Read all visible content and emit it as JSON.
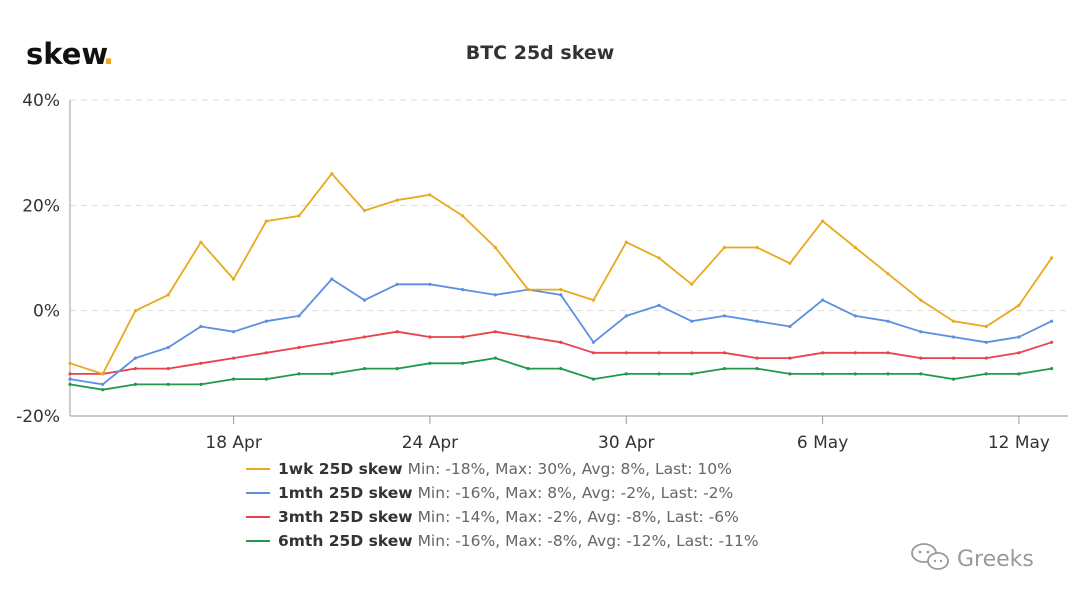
{
  "brand": {
    "logo_text": "skew",
    "logo_dot": "."
  },
  "watermark": {
    "text": "Greeks",
    "icon": "chat-bubbles-icon"
  },
  "colors": {
    "grid": "#dddddd",
    "axis": "#999999",
    "logo_dot": "#e8a91c"
  },
  "chart_data": {
    "type": "line",
    "title": "BTC 25d skew",
    "ylim": [
      -20,
      40
    ],
    "y_ticks": [
      {
        "value": 40,
        "label": "40%"
      },
      {
        "value": 20,
        "label": "20%"
      },
      {
        "value": 0,
        "label": "0%"
      },
      {
        "value": -20,
        "label": "-20%"
      }
    ],
    "x_range": [
      "2020-04-13",
      "2020-05-13"
    ],
    "x_ticks": [
      {
        "date": "2020-04-18",
        "label": "18 Apr"
      },
      {
        "date": "2020-04-24",
        "label": "24 Apr"
      },
      {
        "date": "2020-04-30",
        "label": "30 Apr"
      },
      {
        "date": "2020-05-06",
        "label": "6 May"
      },
      {
        "date": "2020-05-12",
        "label": "12 May"
      }
    ],
    "grid": true,
    "legend_position": "bottom",
    "series": [
      {
        "name": "1wk 25D skew",
        "stats": "Min: -18%, Max: 30%, Avg: 8%, Last: 10%",
        "color": "#e8a91c",
        "points": [
          [
            "2020-04-13",
            -10
          ],
          [
            "2020-04-14",
            -12
          ],
          [
            "2020-04-15",
            0
          ],
          [
            "2020-04-16",
            3
          ],
          [
            "2020-04-17",
            13
          ],
          [
            "2020-04-18",
            6
          ],
          [
            "2020-04-19",
            17
          ],
          [
            "2020-04-20",
            18
          ],
          [
            "2020-04-21",
            26
          ],
          [
            "2020-04-22",
            19
          ],
          [
            "2020-04-23",
            21
          ],
          [
            "2020-04-24",
            22
          ],
          [
            "2020-04-25",
            18
          ],
          [
            "2020-04-26",
            12
          ],
          [
            "2020-04-27",
            4
          ],
          [
            "2020-04-28",
            4
          ],
          [
            "2020-04-29",
            2
          ],
          [
            "2020-04-30",
            13
          ],
          [
            "2020-05-01",
            10
          ],
          [
            "2020-05-02",
            5
          ],
          [
            "2020-05-03",
            12
          ],
          [
            "2020-05-04",
            12
          ],
          [
            "2020-05-05",
            9
          ],
          [
            "2020-05-06",
            17
          ],
          [
            "2020-05-07",
            12
          ],
          [
            "2020-05-08",
            7
          ],
          [
            "2020-05-09",
            2
          ],
          [
            "2020-05-10",
            -2
          ],
          [
            "2020-05-11",
            -3
          ],
          [
            "2020-05-12",
            1
          ],
          [
            "2020-05-13",
            10
          ]
        ]
      },
      {
        "name": "1mth 25D skew",
        "stats": "Min: -16%, Max: 8%, Avg: -2%, Last: -2%",
        "color": "#5b8fe3",
        "points": [
          [
            "2020-04-13",
            -13
          ],
          [
            "2020-04-14",
            -14
          ],
          [
            "2020-04-15",
            -9
          ],
          [
            "2020-04-16",
            -7
          ],
          [
            "2020-04-17",
            -3
          ],
          [
            "2020-04-18",
            -4
          ],
          [
            "2020-04-19",
            -2
          ],
          [
            "2020-04-20",
            -1
          ],
          [
            "2020-04-21",
            6
          ],
          [
            "2020-04-22",
            2
          ],
          [
            "2020-04-23",
            5
          ],
          [
            "2020-04-24",
            5
          ],
          [
            "2020-04-25",
            4
          ],
          [
            "2020-04-26",
            3
          ],
          [
            "2020-04-27",
            4
          ],
          [
            "2020-04-28",
            3
          ],
          [
            "2020-04-29",
            -6
          ],
          [
            "2020-04-30",
            -1
          ],
          [
            "2020-05-01",
            1
          ],
          [
            "2020-05-02",
            -2
          ],
          [
            "2020-05-03",
            -1
          ],
          [
            "2020-05-04",
            -2
          ],
          [
            "2020-05-05",
            -3
          ],
          [
            "2020-05-06",
            2
          ],
          [
            "2020-05-07",
            -1
          ],
          [
            "2020-05-08",
            -2
          ],
          [
            "2020-05-09",
            -4
          ],
          [
            "2020-05-10",
            -5
          ],
          [
            "2020-05-11",
            -6
          ],
          [
            "2020-05-12",
            -5
          ],
          [
            "2020-05-13",
            -2
          ]
        ]
      },
      {
        "name": "3mth 25D skew",
        "stats": "Min: -14%, Max: -2%, Avg: -8%, Last: -6%",
        "color": "#e8414a",
        "points": [
          [
            "2020-04-13",
            -12
          ],
          [
            "2020-04-14",
            -12
          ],
          [
            "2020-04-15",
            -11
          ],
          [
            "2020-04-16",
            -11
          ],
          [
            "2020-04-17",
            -10
          ],
          [
            "2020-04-18",
            -9
          ],
          [
            "2020-04-19",
            -8
          ],
          [
            "2020-04-20",
            -7
          ],
          [
            "2020-04-21",
            -6
          ],
          [
            "2020-04-22",
            -5
          ],
          [
            "2020-04-23",
            -4
          ],
          [
            "2020-04-24",
            -5
          ],
          [
            "2020-04-25",
            -5
          ],
          [
            "2020-04-26",
            -4
          ],
          [
            "2020-04-27",
            -5
          ],
          [
            "2020-04-28",
            -6
          ],
          [
            "2020-04-29",
            -8
          ],
          [
            "2020-04-30",
            -8
          ],
          [
            "2020-05-01",
            -8
          ],
          [
            "2020-05-02",
            -8
          ],
          [
            "2020-05-03",
            -8
          ],
          [
            "2020-05-04",
            -9
          ],
          [
            "2020-05-05",
            -9
          ],
          [
            "2020-05-06",
            -8
          ],
          [
            "2020-05-07",
            -8
          ],
          [
            "2020-05-08",
            -8
          ],
          [
            "2020-05-09",
            -9
          ],
          [
            "2020-05-10",
            -9
          ],
          [
            "2020-05-11",
            -9
          ],
          [
            "2020-05-12",
            -8
          ],
          [
            "2020-05-13",
            -6
          ]
        ]
      },
      {
        "name": "6mth 25D skew",
        "stats": "Min: -16%, Max: -8%, Avg: -12%, Last: -11%",
        "color": "#1f9a4a",
        "points": [
          [
            "2020-04-13",
            -14
          ],
          [
            "2020-04-14",
            -15
          ],
          [
            "2020-04-15",
            -14
          ],
          [
            "2020-04-16",
            -14
          ],
          [
            "2020-04-17",
            -14
          ],
          [
            "2020-04-18",
            -13
          ],
          [
            "2020-04-19",
            -13
          ],
          [
            "2020-04-20",
            -12
          ],
          [
            "2020-04-21",
            -12
          ],
          [
            "2020-04-22",
            -11
          ],
          [
            "2020-04-23",
            -11
          ],
          [
            "2020-04-24",
            -10
          ],
          [
            "2020-04-25",
            -10
          ],
          [
            "2020-04-26",
            -9
          ],
          [
            "2020-04-27",
            -11
          ],
          [
            "2020-04-28",
            -11
          ],
          [
            "2020-04-29",
            -13
          ],
          [
            "2020-04-30",
            -12
          ],
          [
            "2020-05-01",
            -12
          ],
          [
            "2020-05-02",
            -12
          ],
          [
            "2020-05-03",
            -11
          ],
          [
            "2020-05-04",
            -11
          ],
          [
            "2020-05-05",
            -12
          ],
          [
            "2020-05-06",
            -12
          ],
          [
            "2020-05-07",
            -12
          ],
          [
            "2020-05-08",
            -12
          ],
          [
            "2020-05-09",
            -12
          ],
          [
            "2020-05-10",
            -13
          ],
          [
            "2020-05-11",
            -12
          ],
          [
            "2020-05-12",
            -12
          ],
          [
            "2020-05-13",
            -11
          ]
        ]
      }
    ]
  }
}
